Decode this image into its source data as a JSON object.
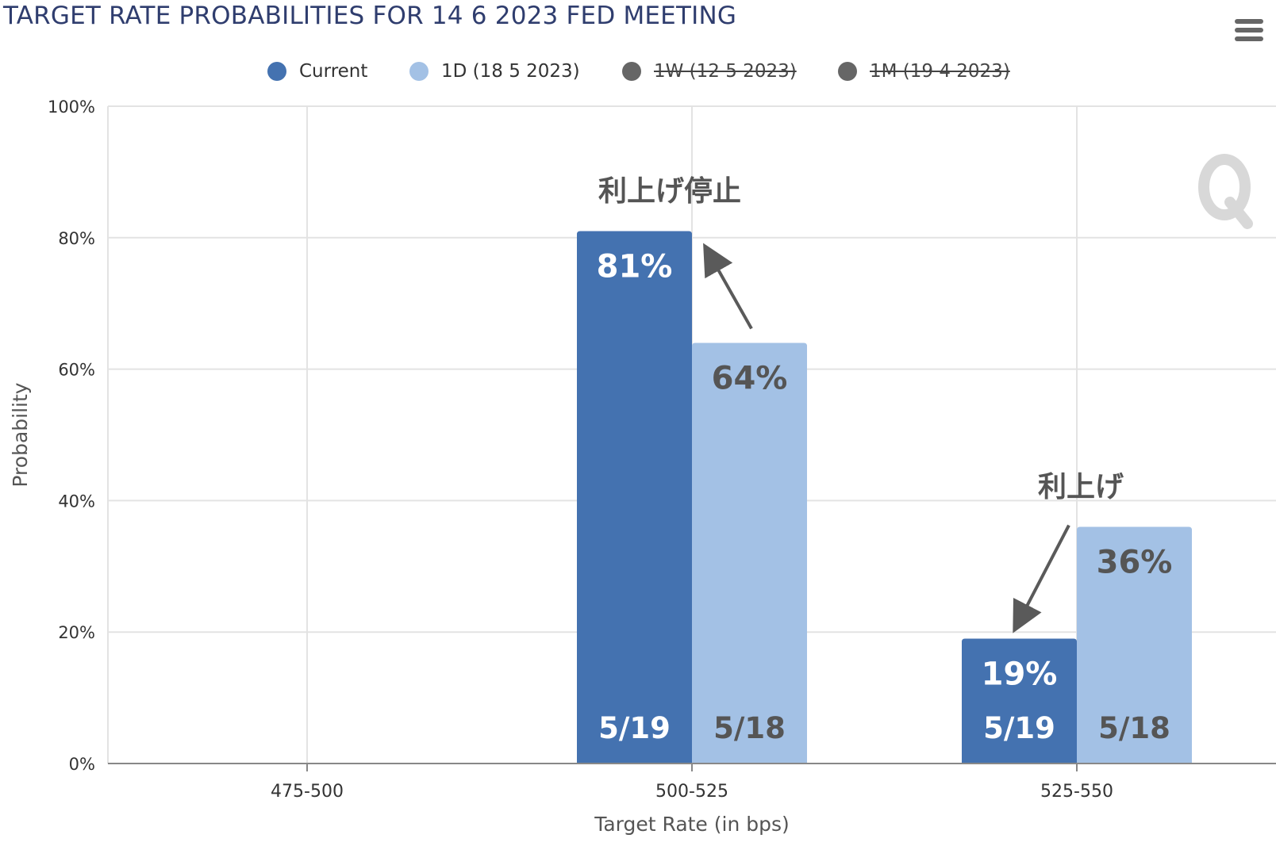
{
  "menu_icon": "hamburger-menu-icon",
  "watermark_icon": "quikstrike-q-logo",
  "colors": {
    "current": "#4472b0",
    "one_day": "#a3c1e5",
    "hidden_series": "#666666",
    "title": "#2f3d6e",
    "grid": "#e3e3e3",
    "axis": "#888888",
    "label_on_dark": "#ffffff",
    "label_on_light": "#555555",
    "arrow": "#5a5a5a"
  },
  "chart_data": {
    "type": "bar",
    "title": "TARGET RATE PROBABILITIES FOR 14 6 2023 FED MEETING",
    "xlabel": "Target Rate (in bps)",
    "ylabel": "Probability",
    "categories": [
      "475-500",
      "500-525",
      "525-550"
    ],
    "ylim": [
      0,
      100
    ],
    "y_ticks": [
      "0%",
      "20%",
      "40%",
      "60%",
      "80%",
      "100%"
    ],
    "grid": true,
    "legend_position": "top-center",
    "series": [
      {
        "name": "Current",
        "values": [
          0,
          81,
          19
        ],
        "visible": true,
        "value_labels": [
          "",
          "81%",
          "19%"
        ],
        "date_labels": [
          "",
          "5/19",
          "5/19"
        ]
      },
      {
        "name": "1D (18 5 2023)",
        "values": [
          0,
          64,
          36
        ],
        "visible": true,
        "value_labels": [
          "",
          "64%",
          "36%"
        ],
        "date_labels": [
          "",
          "5/18",
          "5/18"
        ]
      },
      {
        "name": "1W (12 5 2023)",
        "visible": false
      },
      {
        "name": "1M (19 4 2023)",
        "visible": false
      }
    ],
    "annotations": [
      {
        "text": "利上げ停止",
        "category": "500-525"
      },
      {
        "text": "利上げ",
        "category": "525-550"
      }
    ]
  }
}
